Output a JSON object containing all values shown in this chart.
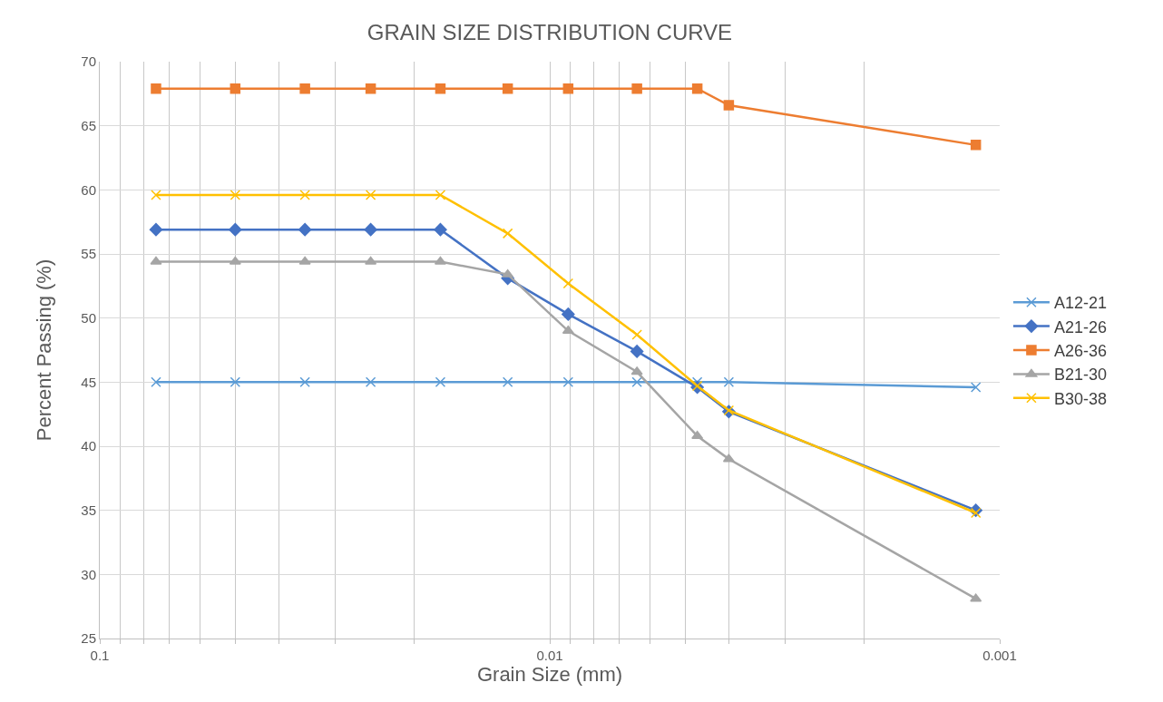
{
  "chart_data": {
    "type": "line",
    "title": "GRAIN SIZE DISTRIBUTION CURVE",
    "xlabel": "Grain Size (mm)",
    "ylabel": "Percent Passing (%)",
    "x": [
      0.075,
      0.05,
      0.035,
      0.025,
      0.0175,
      0.0124,
      0.0091,
      0.0064,
      0.0047,
      0.004,
      0.00113
    ],
    "series": [
      {
        "name": "A12-21",
        "color": "#5b9bd5",
        "marker": "cross",
        "values": [
          45,
          45,
          45,
          45,
          45,
          45,
          45,
          45,
          45,
          45,
          44.6
        ]
      },
      {
        "name": "A21-26",
        "color": "#4472c4",
        "marker": "diamond",
        "values": [
          56.9,
          56.9,
          56.9,
          56.9,
          56.9,
          53.1,
          50.3,
          47.4,
          44.6,
          42.7,
          35.0
        ]
      },
      {
        "name": "A26-36",
        "color": "#ed7d31",
        "marker": "square",
        "values": [
          67.9,
          67.9,
          67.9,
          67.9,
          67.9,
          67.9,
          67.9,
          67.9,
          67.9,
          66.6,
          63.5
        ]
      },
      {
        "name": "B21-30",
        "color": "#a5a5a5",
        "marker": "triangle",
        "values": [
          54.4,
          54.4,
          54.4,
          54.4,
          54.4,
          53.4,
          49.0,
          45.8,
          40.8,
          39.0,
          28.1
        ]
      },
      {
        "name": "B30-38",
        "color": "#ffc000",
        "marker": "cross",
        "values": [
          59.6,
          59.6,
          59.6,
          59.6,
          59.6,
          56.6,
          52.7,
          48.7,
          44.7,
          42.8,
          34.8
        ]
      }
    ],
    "log": "x",
    "xlim": [
      0.1,
      0.001
    ],
    "xticks": [
      {
        "value": 0.1,
        "label": "0.1"
      },
      {
        "value": 0.09,
        "label": null
      },
      {
        "value": 0.08,
        "label": null
      },
      {
        "value": 0.07,
        "label": null
      },
      {
        "value": 0.06,
        "label": null
      },
      {
        "value": 0.05,
        "label": null
      },
      {
        "value": 0.04,
        "label": null
      },
      {
        "value": 0.03,
        "label": null
      },
      {
        "value": 0.02,
        "label": null
      },
      {
        "value": 0.01,
        "label": "0.01"
      },
      {
        "value": 0.009,
        "label": null
      },
      {
        "value": 0.008,
        "label": null
      },
      {
        "value": 0.007,
        "label": null
      },
      {
        "value": 0.006,
        "label": null
      },
      {
        "value": 0.005,
        "label": null
      },
      {
        "value": 0.004,
        "label": null
      },
      {
        "value": 0.003,
        "label": null
      },
      {
        "value": 0.002,
        "label": null
      },
      {
        "value": 0.001,
        "label": "0.001"
      }
    ],
    "ylim": [
      25,
      70
    ],
    "yticks": [
      25,
      30,
      35,
      40,
      45,
      50,
      55,
      60,
      65,
      70
    ],
    "grid": true,
    "legend": "right",
    "line_style": "solid"
  }
}
